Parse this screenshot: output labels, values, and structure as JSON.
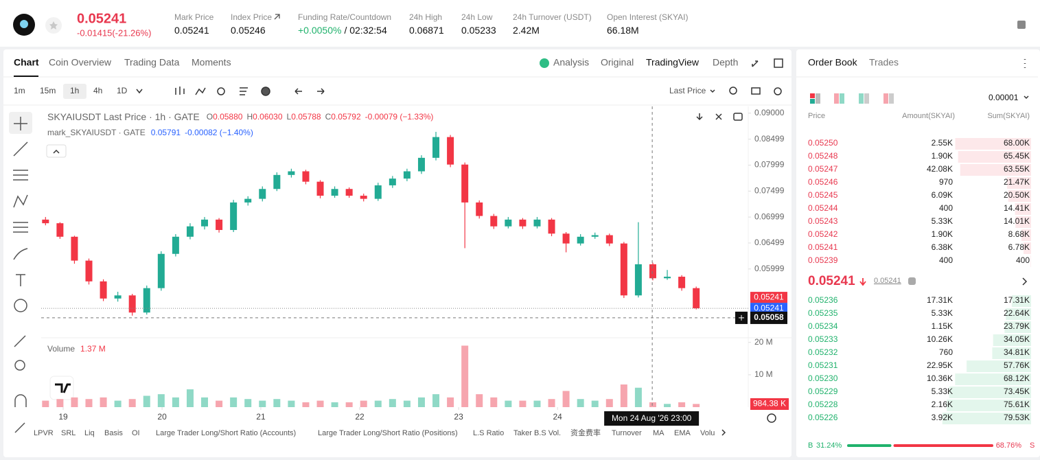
{
  "header": {
    "price": "0.05241",
    "change": "-0.01415(-21.26%)",
    "stats": [
      {
        "label": "Mark Price",
        "value": "0.05241"
      },
      {
        "label": "Index Price",
        "value": "0.05246"
      },
      {
        "label": "Funding Rate/Countdown",
        "value": "+0.0050%",
        "extra": "/ 02:32:54"
      },
      {
        "label": "24h High",
        "value": "0.06871"
      },
      {
        "label": "24h Low",
        "value": "0.05233"
      },
      {
        "label": "24h Turnover (USDT)",
        "value": "2.42M"
      },
      {
        "label": "Open Interest (SKYAI)",
        "value": "66.18M"
      }
    ]
  },
  "chart_tabs": [
    "Chart",
    "Coin Overview",
    "Trading Data",
    "Moments"
  ],
  "view_tabs": [
    "Analysis",
    "Original",
    "TradingView",
    "Depth"
  ],
  "intervals": [
    "1m",
    "15m",
    "1h",
    "4h",
    "1D"
  ],
  "price_source": "Last Price",
  "legend": {
    "title": "SKYAIUSDT Last Price · 1h · GATE",
    "ohlc": [
      {
        "key": "O",
        "value": "0.05880"
      },
      {
        "key": "H",
        "value": "0.06030"
      },
      {
        "key": "L",
        "value": "0.05788"
      },
      {
        "key": "C",
        "value": "0.05792"
      }
    ],
    "change": "-0.00079 (−1.33%)",
    "mark": "mark_SKYAIUSDT · GATE",
    "mark_value": "0.05791",
    "mark_change": "-0.00082 (−1.40%)"
  },
  "chart_data": {
    "type": "candlestick",
    "candles": [
      [
        0.0695,
        0.07,
        0.0684,
        0.0688
      ],
      [
        0.0688,
        0.069,
        0.0658,
        0.0662
      ],
      [
        0.0662,
        0.0664,
        0.061,
        0.0616
      ],
      [
        0.0616,
        0.062,
        0.057,
        0.0576
      ],
      [
        0.0576,
        0.058,
        0.0538,
        0.0543
      ],
      [
        0.0543,
        0.0556,
        0.0537,
        0.0549
      ],
      [
        0.0549,
        0.0552,
        0.051,
        0.0516
      ],
      [
        0.0516,
        0.0568,
        0.0512,
        0.0563
      ],
      [
        0.0563,
        0.0634,
        0.0558,
        0.0629
      ],
      [
        0.0629,
        0.0667,
        0.0624,
        0.0662
      ],
      [
        0.0662,
        0.0688,
        0.0657,
        0.0682
      ],
      [
        0.0682,
        0.07,
        0.0676,
        0.0695
      ],
      [
        0.0695,
        0.0698,
        0.067,
        0.0675
      ],
      [
        0.0675,
        0.0733,
        0.0671,
        0.0728
      ],
      [
        0.0728,
        0.074,
        0.0722,
        0.0735
      ],
      [
        0.0735,
        0.0759,
        0.073,
        0.0754
      ],
      [
        0.0754,
        0.0786,
        0.075,
        0.0781
      ],
      [
        0.0781,
        0.0793,
        0.0776,
        0.0788
      ],
      [
        0.0788,
        0.0791,
        0.0763,
        0.0768
      ],
      [
        0.0768,
        0.0771,
        0.0736,
        0.0741
      ],
      [
        0.0741,
        0.0759,
        0.0737,
        0.0754
      ],
      [
        0.0754,
        0.0757,
        0.0737,
        0.0741
      ],
      [
        0.0741,
        0.0745,
        0.073,
        0.0735
      ],
      [
        0.0735,
        0.0766,
        0.0731,
        0.0761
      ],
      [
        0.0761,
        0.0779,
        0.0756,
        0.0774
      ],
      [
        0.0774,
        0.0793,
        0.0769,
        0.0788
      ],
      [
        0.0788,
        0.0819,
        0.0783,
        0.0814
      ],
      [
        0.0814,
        0.0864,
        0.0809,
        0.0854
      ],
      [
        0.0854,
        0.0858,
        0.0796,
        0.0801
      ],
      [
        0.0801,
        0.0805,
        0.064,
        0.0728
      ],
      [
        0.0728,
        0.0732,
        0.0697,
        0.0702
      ],
      [
        0.0702,
        0.0706,
        0.0677,
        0.0682
      ],
      [
        0.0682,
        0.07,
        0.0678,
        0.0695
      ],
      [
        0.0695,
        0.0698,
        0.0677,
        0.0682
      ],
      [
        0.0682,
        0.07,
        0.0678,
        0.0695
      ],
      [
        0.0695,
        0.0698,
        0.0663,
        0.0668
      ],
      [
        0.0668,
        0.0671,
        0.0632,
        0.0649
      ],
      [
        0.0649,
        0.0667,
        0.0645,
        0.0662
      ],
      [
        0.0662,
        0.067,
        0.0658,
        0.0665
      ],
      [
        0.0665,
        0.0668,
        0.0644,
        0.0649
      ],
      [
        0.0649,
        0.0652,
        0.0544,
        0.0549
      ],
      [
        0.0549,
        0.069,
        0.0545,
        0.0609
      ],
      [
        0.0609,
        0.0612,
        0.0578,
        0.0582
      ],
      [
        0.0582,
        0.0598,
        0.0579,
        0.0585
      ],
      [
        0.0585,
        0.0588,
        0.0558,
        0.0563
      ],
      [
        0.0563,
        0.0566,
        0.0522,
        0.05241
      ]
    ],
    "volume": [
      2,
      2.5,
      3,
      2.5,
      3,
      2,
      2.5,
      3.5,
      4,
      3,
      5.5,
      3,
      2,
      3,
      2.5,
      2,
      2.5,
      2,
      1.5,
      2,
      1.5,
      1.5,
      2,
      2,
      2.5,
      2,
      3,
      4,
      3,
      19,
      4,
      3,
      2,
      2,
      2,
      2.5,
      5,
      2.5,
      2,
      2.5,
      7,
      6,
      1.5,
      1,
      1.5,
      0.98438
    ],
    "xlim": [
      -0.3,
      48.6
    ],
    "xticks": [
      {
        "value": 1.22,
        "label": "19"
      },
      {
        "value": 8.06,
        "label": "20"
      },
      {
        "value": 14.89,
        "label": "21"
      },
      {
        "value": 21.73,
        "label": "22"
      },
      {
        "value": 28.57,
        "label": "23"
      },
      {
        "value": 35.41,
        "label": "24"
      }
    ],
    "ylim": [
      0.047,
      0.0913
    ],
    "yticks": [
      {
        "value": 0.09,
        "label": "0.09000"
      },
      0.08499,
      0.07999,
      0.07499,
      0.06999,
      0.06499,
      0.05999
    ],
    "y2lim": [
      0,
      21
    ],
    "y2ticks": [
      {
        "value": 20,
        "label": "20 M"
      },
      {
        "value": 10,
        "label": "10 M"
      }
    ],
    "grid": false,
    "up_color": "#22ab94",
    "down_color": "#f23645",
    "volume_up_color": "#8fd9c6",
    "volume_down_color": "#f6a5ae",
    "volume_title": "Volume",
    "volume_value": "1.37 M",
    "volume_last_label": "984.38 K",
    "price_tags": [
      {
        "value": 0.05241,
        "label": "0.05241",
        "color": "#f23645"
      },
      {
        "value": 0.05241,
        "label": "0.05241",
        "color": "#2962ff"
      }
    ],
    "crosshair": {
      "x": 41.96,
      "x_label": "Mon 24 Aug '26   23:00",
      "y": {
        "value": 0.05058,
        "label": "0.05058"
      }
    }
  },
  "indicators": [
    "LPVR",
    "SRL",
    "Liq",
    "Basis",
    "OI",
    "Large Trader Long/Short Ratio (Accounts)",
    "Large Trader Long/Short Ratio (Positions)",
    "L.S Ratio",
    "Taker B.S Vol.",
    "资金费率",
    "Turnover",
    "MA",
    "EMA",
    "Volu"
  ],
  "order_book": {
    "tabs": [
      "Order Book",
      "Trades"
    ],
    "precision": "0.00001",
    "headers": [
      "Price",
      "Amount(SKYAI)",
      "Sum(SKYAI)"
    ],
    "asks": [
      {
        "price": "0.05250",
        "amount": "2.55K",
        "sum": {
          "value": 68000,
          "label": "68.00K"
        }
      },
      {
        "price": "0.05248",
        "amount": "1.90K",
        "sum": {
          "value": 65450,
          "label": "65.45K"
        }
      },
      {
        "price": "0.05247",
        "amount": "42.08K",
        "sum": {
          "value": 63550,
          "label": "63.55K"
        }
      },
      {
        "price": "0.05246",
        "amount": "970",
        "sum": {
          "value": 21470,
          "label": "21.47K"
        }
      },
      {
        "price": "0.05245",
        "amount": "6.09K",
        "sum": {
          "value": 20500,
          "label": "20.50K"
        }
      },
      {
        "price": "0.05244",
        "amount": "400",
        "sum": {
          "value": 14410,
          "label": "14.41K"
        }
      },
      {
        "price": "0.05243",
        "amount": "5.33K",
        "sum": {
          "value": 14010,
          "label": "14.01K"
        }
      },
      {
        "price": "0.05242",
        "amount": "1.90K",
        "sum": {
          "value": 8680,
          "label": "8.68K"
        }
      },
      {
        "price": "0.05241",
        "amount": "6.38K",
        "sum": {
          "value": 6780,
          "label": "6.78K"
        }
      },
      {
        "price": "0.05239",
        "amount": "400",
        "sum": 400
      }
    ],
    "last_price": "0.05241",
    "mark_price": "0.05241",
    "bids": [
      {
        "price": "0.05236",
        "amount": "17.31K",
        "sum": {
          "value": 17310,
          "label": "17.31K"
        }
      },
      {
        "price": "0.05235",
        "amount": "5.33K",
        "sum": {
          "value": 22640,
          "label": "22.64K"
        }
      },
      {
        "price": "0.05234",
        "amount": "1.15K",
        "sum": {
          "value": 23790,
          "label": "23.79K"
        }
      },
      {
        "price": "0.05233",
        "amount": "10.26K",
        "sum": {
          "value": 34050,
          "label": "34.05K"
        }
      },
      {
        "price": "0.05232",
        "amount": "760",
        "sum": {
          "value": 34810,
          "label": "34.81K"
        }
      },
      {
        "price": "0.05231",
        "amount": "22.95K",
        "sum": {
          "value": 57760,
          "label": "57.76K"
        }
      },
      {
        "price": "0.05230",
        "amount": "10.36K",
        "sum": {
          "value": 68120,
          "label": "68.12K"
        }
      },
      {
        "price": "0.05229",
        "amount": "5.33K",
        "sum": {
          "value": 73450,
          "label": "73.45K"
        }
      },
      {
        "price": "0.05228",
        "amount": "2.16K",
        "sum": {
          "value": 75610,
          "label": "75.61K"
        }
      },
      {
        "price": "0.05226",
        "amount": "3.92K",
        "sum": {
          "value": 79530,
          "label": "79.53K"
        }
      }
    ],
    "buy_key": "B",
    "buy_ratio": {
      "value": 31.24,
      "label": "31.24%"
    },
    "sell_ratio": {
      "value": 68.76,
      "label": "68.76%"
    },
    "sell_key": "S"
  }
}
